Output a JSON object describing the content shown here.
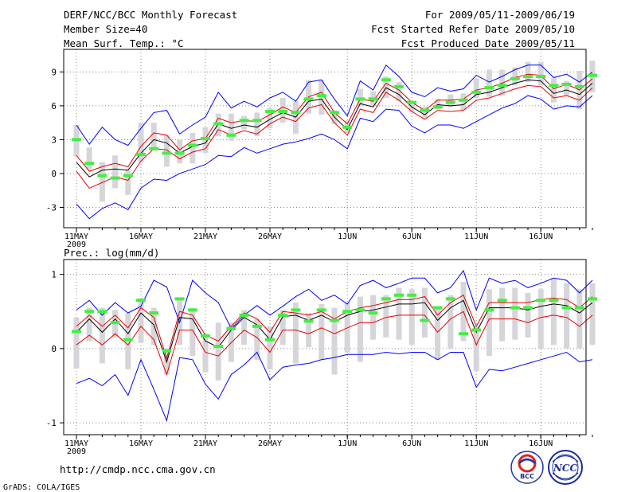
{
  "header": {
    "title": "DERF/NCC/BCC Monthly Forecast",
    "member": "Member Size=40",
    "variable": "Mean Surf. Temp.: °C",
    "period": "For 2009/05/11-2009/06/19",
    "started": "Fcst Started Refer Date 2009/05/10",
    "produced": "Fcst Produced Date 2009/05/11"
  },
  "footer": {
    "url": "http://cmdp.ncc.cma.gov.cn",
    "grads": "GrADS: COLA/IGES",
    "logo1": "BCC",
    "logo2": "NCC"
  },
  "colors": {
    "blue": "#0000ff",
    "red": "#e60000",
    "black": "#000000",
    "green": "#44ee44",
    "bar": "#d6d6da",
    "grid": "#888888"
  },
  "chart_data": [
    {
      "type": "line",
      "title": "Mean Surf. Temp.: °C",
      "ylim": [
        -4.8,
        11
      ],
      "yticks": [
        9,
        6,
        3,
        0,
        -3
      ],
      "xticks": [
        {
          "day": 0,
          "label": "11MAY"
        },
        {
          "day": 5,
          "label": "16MAY"
        },
        {
          "day": 10,
          "label": "21MAY"
        },
        {
          "day": 15,
          "label": "26MAY"
        },
        {
          "day": 21,
          "label": "1JUN"
        },
        {
          "day": 26,
          "label": "6JUN"
        },
        {
          "day": 31,
          "label": "11JUN"
        },
        {
          "day": 36,
          "label": "16JUN"
        }
      ],
      "year_label": "2009",
      "series": [
        {
          "name": "max",
          "color": "blue",
          "values": [
            4.3,
            2.6,
            4.1,
            3.0,
            2.5,
            4.0,
            5.4,
            5.6,
            3.5,
            4.3,
            5.0,
            7.2,
            5.8,
            6.4,
            5.9,
            6.7,
            7.2,
            6.4,
            8.1,
            8.3,
            6.6,
            5.1,
            8.2,
            7.4,
            9.6,
            8.6,
            7.2,
            6.8,
            7.6,
            7.3,
            7.5,
            8.7,
            8.1,
            8.6,
            9.2,
            9.6,
            9.6,
            8.5,
            8.8,
            8.1,
            9.0
          ]
        },
        {
          "name": "upper",
          "color": "red",
          "values": [
            1.6,
            0.2,
            0.6,
            0.9,
            0.6,
            2.4,
            3.6,
            3.4,
            2.1,
            2.9,
            3.1,
            4.9,
            4.5,
            4.7,
            4.6,
            5.2,
            5.9,
            5.4,
            6.8,
            7.2,
            5.4,
            4.4,
            6.6,
            6.4,
            8.0,
            7.4,
            6.3,
            5.6,
            6.5,
            6.5,
            6.6,
            7.4,
            7.6,
            8.0,
            8.5,
            8.8,
            8.7,
            7.5,
            7.9,
            7.4,
            8.4
          ]
        },
        {
          "name": "mean",
          "color": "black",
          "values": [
            1.0,
            -0.3,
            0.3,
            0.4,
            0.3,
            1.8,
            3.0,
            2.7,
            1.8,
            2.4,
            2.7,
            4.4,
            4.0,
            4.3,
            4.1,
            4.8,
            5.4,
            5.0,
            6.4,
            6.6,
            5.0,
            3.9,
            6.2,
            5.9,
            7.6,
            7.0,
            5.9,
            5.2,
            6.1,
            6.0,
            6.1,
            7.0,
            7.2,
            7.6,
            8.0,
            8.3,
            8.2,
            7.1,
            7.4,
            7.0,
            8.0
          ]
        },
        {
          "name": "lower",
          "color": "red",
          "values": [
            0.2,
            -1.3,
            -0.8,
            -0.3,
            -0.6,
            1.1,
            2.2,
            2.1,
            1.3,
            1.9,
            2.2,
            3.9,
            3.4,
            3.8,
            3.5,
            4.4,
            5.0,
            4.6,
            5.8,
            6.1,
            4.5,
            3.4,
            5.7,
            5.4,
            7.2,
            6.5,
            5.5,
            4.8,
            5.6,
            5.5,
            5.6,
            6.5,
            6.7,
            7.1,
            7.5,
            7.8,
            7.7,
            6.7,
            6.9,
            6.5,
            7.6
          ]
        },
        {
          "name": "min",
          "color": "blue",
          "values": [
            -2.7,
            -4.0,
            -3.1,
            -2.6,
            -3.2,
            -1.3,
            -0.5,
            -0.6,
            0.0,
            0.4,
            0.8,
            1.6,
            1.5,
            2.3,
            1.8,
            2.2,
            2.6,
            2.8,
            3.1,
            3.5,
            3.0,
            2.2,
            4.9,
            4.6,
            5.7,
            5.6,
            4.2,
            3.6,
            4.3,
            4.3,
            4.0,
            4.6,
            5.2,
            5.8,
            6.2,
            6.9,
            6.6,
            5.7,
            6.0,
            5.9,
            6.9
          ]
        }
      ],
      "bars": [
        [
          1.5,
          4.3
        ],
        [
          0.4,
          2.3
        ],
        [
          -2.5,
          1.0
        ],
        [
          -1.3,
          1.6
        ],
        [
          -1.9,
          0.3
        ],
        [
          1.0,
          4.5
        ],
        [
          2.3,
          4.5
        ],
        [
          0.6,
          3.4
        ],
        [
          0.9,
          3.0
        ],
        [
          0.9,
          3.6
        ],
        [
          1.8,
          4.1
        ],
        [
          3.3,
          5.3
        ],
        [
          2.9,
          5.3
        ],
        [
          3.9,
          5.1
        ],
        [
          3.3,
          5.4
        ],
        [
          4.0,
          5.8
        ],
        [
          4.5,
          6.7
        ],
        [
          3.5,
          6.4
        ],
        [
          5.3,
          8.3
        ],
        [
          5.2,
          8.3
        ],
        [
          4.4,
          5.6
        ],
        [
          3.6,
          4.7
        ],
        [
          6.0,
          7.5
        ],
        [
          6.0,
          7.3
        ],
        [
          6.7,
          8.6
        ],
        [
          6.4,
          8.1
        ],
        [
          5.4,
          6.4
        ],
        [
          4.9,
          5.9
        ],
        [
          5.7,
          6.6
        ],
        [
          5.9,
          7.0
        ],
        [
          5.6,
          7.1
        ],
        [
          6.7,
          8.4
        ],
        [
          6.8,
          9.2
        ],
        [
          6.9,
          9.2
        ],
        [
          7.8,
          9.4
        ],
        [
          8.1,
          9.9
        ],
        [
          7.8,
          9.9
        ],
        [
          6.3,
          8.5
        ],
        [
          6.9,
          8.2
        ],
        [
          5.7,
          9.1
        ],
        [
          7.2,
          10.0
        ]
      ],
      "observed": [
        3.0,
        0.9,
        -0.2,
        -0.4,
        -0.2,
        1.7,
        2.2,
        1.8,
        1.8,
        2.5,
        3.1,
        4.4,
        3.4,
        4.7,
        4.7,
        5.5,
        5.5,
        5.4,
        6.6,
        6.9,
        5.4,
        4.1,
        6.6,
        6.6,
        8.3,
        7.7,
        6.3,
        5.6,
        5.9,
        6.3,
        6.5,
        7.2,
        7.6,
        7.8,
        8.4,
        8.6,
        8.6,
        7.8,
        7.9,
        7.7,
        8.7
      ]
    },
    {
      "type": "line",
      "title": "Prec.: log(mm/d)",
      "ylim": [
        -1.16,
        1.2
      ],
      "yticks": [
        1,
        0,
        -1
      ],
      "xticks": [
        {
          "day": 0,
          "label": "11MAY"
        },
        {
          "day": 5,
          "label": "16MAY"
        },
        {
          "day": 10,
          "label": "21MAY"
        },
        {
          "day": 15,
          "label": "26MAY"
        },
        {
          "day": 21,
          "label": "1JUN"
        },
        {
          "day": 26,
          "label": "6JUN"
        },
        {
          "day": 31,
          "label": "11JUN"
        },
        {
          "day": 36,
          "label": "16JUN"
        }
      ],
      "year_label": "2009",
      "series": [
        {
          "name": "max",
          "color": "blue",
          "values": [
            0.52,
            0.65,
            0.45,
            0.62,
            0.48,
            0.57,
            0.92,
            0.83,
            0.35,
            0.92,
            0.75,
            0.62,
            0.27,
            0.45,
            0.58,
            0.45,
            0.57,
            0.7,
            0.8,
            0.65,
            0.72,
            0.6,
            0.85,
            0.92,
            0.82,
            0.88,
            0.95,
            0.95,
            0.75,
            0.82,
            1.05,
            0.52,
            0.95,
            0.88,
            0.92,
            0.82,
            0.88,
            0.95,
            0.92,
            0.75,
            0.92
          ]
        },
        {
          "name": "upper",
          "color": "red",
          "values": [
            0.3,
            0.45,
            0.3,
            0.45,
            0.28,
            0.55,
            0.42,
            -0.13,
            0.5,
            0.45,
            0.18,
            0.1,
            0.3,
            0.48,
            0.4,
            0.22,
            0.5,
            0.48,
            0.45,
            0.5,
            0.4,
            0.5,
            0.55,
            0.58,
            0.62,
            0.66,
            0.66,
            0.7,
            0.45,
            0.62,
            0.72,
            0.3,
            0.62,
            0.62,
            0.62,
            0.62,
            0.66,
            0.68,
            0.66,
            0.55,
            0.7
          ]
        },
        {
          "name": "mean",
          "color": "black",
          "values": [
            0.22,
            0.4,
            0.22,
            0.4,
            0.2,
            0.48,
            0.32,
            -0.18,
            0.42,
            0.4,
            0.1,
            0.02,
            0.25,
            0.42,
            0.32,
            0.12,
            0.43,
            0.45,
            0.38,
            0.45,
            0.36,
            0.45,
            0.5,
            0.52,
            0.56,
            0.6,
            0.6,
            0.62,
            0.38,
            0.55,
            0.65,
            0.22,
            0.55,
            0.55,
            0.55,
            0.52,
            0.57,
            0.6,
            0.58,
            0.48,
            0.62
          ]
        },
        {
          "name": "lower",
          "color": "red",
          "values": [
            0.05,
            0.18,
            0.05,
            0.2,
            0.05,
            0.3,
            0.12,
            -0.35,
            0.25,
            0.25,
            -0.05,
            -0.1,
            0.08,
            0.25,
            0.15,
            -0.05,
            0.25,
            0.25,
            0.2,
            0.28,
            0.2,
            0.28,
            0.35,
            0.35,
            0.42,
            0.45,
            0.45,
            0.45,
            0.22,
            0.4,
            0.5,
            0.05,
            0.4,
            0.4,
            0.4,
            0.35,
            0.42,
            0.45,
            0.42,
            0.3,
            0.45
          ]
        },
        {
          "name": "min",
          "color": "blue",
          "values": [
            -0.47,
            -0.4,
            -0.5,
            -0.35,
            -0.63,
            -0.15,
            -0.55,
            -0.97,
            -0.12,
            -0.15,
            -0.48,
            -0.68,
            -0.35,
            -0.22,
            -0.05,
            -0.42,
            -0.25,
            -0.22,
            -0.2,
            -0.15,
            -0.12,
            -0.08,
            -0.08,
            -0.08,
            -0.05,
            -0.07,
            -0.05,
            -0.05,
            -0.15,
            -0.05,
            -0.05,
            -0.52,
            -0.28,
            -0.3,
            -0.25,
            -0.2,
            -0.15,
            -0.1,
            -0.05,
            -0.18,
            -0.15
          ]
        }
      ],
      "bars": [
        [
          -0.27,
          0.42
        ],
        [
          0.1,
          0.55
        ],
        [
          -0.2,
          0.55
        ],
        [
          0.15,
          0.52
        ],
        [
          -0.28,
          0.48
        ],
        [
          0.08,
          0.68
        ],
        [
          0.05,
          0.55
        ],
        [
          -0.35,
          0.0
        ],
        [
          0.05,
          0.68
        ],
        [
          -0.1,
          0.55
        ],
        [
          -0.32,
          0.2
        ],
        [
          -0.43,
          0.35
        ],
        [
          -0.18,
          0.35
        ],
        [
          0.05,
          0.52
        ],
        [
          -0.15,
          0.4
        ],
        [
          -0.28,
          0.3
        ],
        [
          0.05,
          0.52
        ],
        [
          -0.2,
          0.62
        ],
        [
          0.02,
          0.48
        ],
        [
          -0.15,
          0.6
        ],
        [
          -0.35,
          0.55
        ],
        [
          -0.05,
          0.62
        ],
        [
          -0.18,
          0.7
        ],
        [
          0.12,
          0.72
        ],
        [
          0.15,
          0.72
        ],
        [
          0.12,
          0.82
        ],
        [
          0.05,
          0.8
        ],
        [
          0.15,
          0.82
        ],
        [
          -0.15,
          0.55
        ],
        [
          0.0,
          0.72
        ],
        [
          0.1,
          0.9
        ],
        [
          -0.3,
          0.3
        ],
        [
          -0.1,
          0.8
        ],
        [
          0.1,
          0.82
        ],
        [
          0.12,
          0.82
        ],
        [
          0.15,
          0.75
        ],
        [
          0.0,
          0.8
        ],
        [
          0.05,
          0.95
        ],
        [
          0.0,
          0.88
        ],
        [
          0.0,
          0.8
        ],
        [
          0.05,
          0.88
        ]
      ],
      "observed": [
        0.23,
        0.5,
        0.5,
        0.35,
        0.12,
        0.65,
        0.48,
        -0.03,
        0.67,
        0.52,
        0.17,
        0.03,
        0.27,
        0.45,
        0.3,
        0.12,
        0.45,
        0.52,
        0.37,
        0.52,
        0.38,
        0.5,
        0.52,
        0.48,
        0.67,
        0.72,
        0.72,
        0.38,
        0.55,
        0.67,
        0.2,
        0.25,
        0.52,
        0.65,
        0.55,
        0.55,
        0.65,
        0.65,
        0.55,
        0.55,
        0.67
      ]
    }
  ]
}
